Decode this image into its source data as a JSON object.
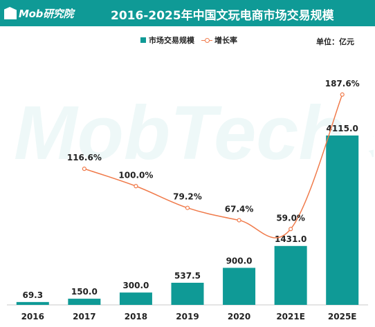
{
  "header": {
    "logo_text": "Mob研究院",
    "title": "2016-2025年中国文玩电商市场交易规模"
  },
  "legend": {
    "bar_label": "市场交易规模",
    "line_label": "增长率"
  },
  "unit_label": "单位：亿元",
  "watermark": {
    "text": "MobTech 袤博"
  },
  "colors": {
    "bar": "#0f9a96",
    "line": "#f07a4a",
    "header": "#0f9a96"
  },
  "chart_data": {
    "type": "bar",
    "title": "2016-2025年中国文玩电商市场交易规模",
    "categories": [
      "2016",
      "2017",
      "2018",
      "2019",
      "2020",
      "2021E",
      "2025E"
    ],
    "series": [
      {
        "name": "市场交易规模",
        "type": "bar",
        "values": [
          69.3,
          150.0,
          300.0,
          537.5,
          900.0,
          1431.0,
          4115.0
        ],
        "labels": [
          "69.3",
          "150.0",
          "300.0",
          "537.5",
          "900.0",
          "1431.0",
          "4115.0"
        ]
      },
      {
        "name": "增长率",
        "type": "line",
        "values": [
          null,
          116.6,
          100.0,
          79.2,
          67.4,
          59.0,
          187.6
        ],
        "labels": [
          null,
          "116.6%",
          "100.0%",
          "79.2%",
          "67.4%",
          "59.0%",
          "187.6%"
        ]
      }
    ],
    "unit": "亿元",
    "legend_position": "top-center",
    "grid": false
  }
}
